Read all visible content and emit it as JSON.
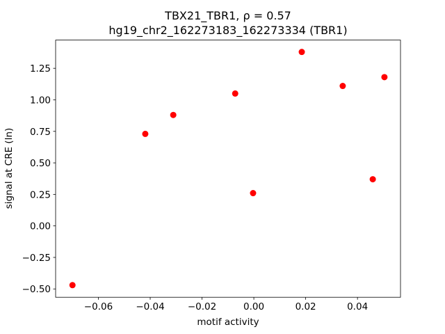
{
  "chart_data": {
    "type": "scatter",
    "title": "TBX21_TBR1, ρ = 0.57",
    "subtitle": "hg19_chr2_162273183_162273334 (TBR1)",
    "x_label": "motif activity",
    "y_label": "signal at CRE (ln)",
    "color": "#ff0000",
    "x": [
      -0.07,
      -0.0419,
      -0.0311,
      -0.0072,
      -0.0003,
      0.0185,
      0.0343,
      0.0459,
      0.0504
    ],
    "values": [
      -0.47,
      0.73,
      0.88,
      1.05,
      0.26,
      1.38,
      1.11,
      0.37,
      1.18
    ],
    "xlim": [
      -0.0765,
      0.0566
    ],
    "ylim": [
      -0.566,
      1.474
    ],
    "xticks": [
      {
        "value": -0.06,
        "label": "−0.06"
      },
      {
        "value": -0.04,
        "label": "−0.04"
      },
      {
        "value": -0.02,
        "label": "−0.02"
      },
      {
        "value": 0,
        "label": "0.00"
      },
      0.02,
      0.04
    ],
    "yticks": [
      {
        "value": -0.5,
        "label": "−0.50"
      },
      {
        "value": -0.25,
        "label": "−0.25"
      },
      {
        "value": 0,
        "label": "0.00"
      },
      0.25,
      {
        "value": 0.5,
        "label": "0.50"
      },
      0.75,
      {
        "value": 1,
        "label": "1.00"
      },
      1.25
    ],
    "grid": false
  }
}
